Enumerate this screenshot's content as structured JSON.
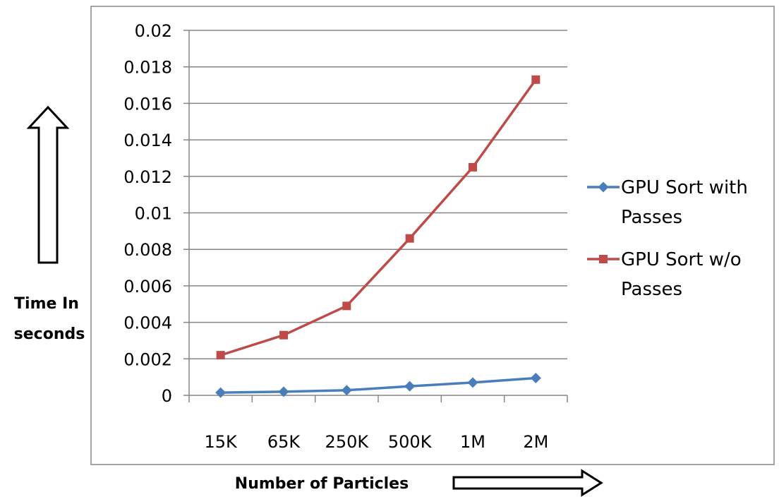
{
  "chart_data": {
    "type": "line",
    "categories": [
      "15K",
      "65K",
      "250K",
      "500K",
      "1M",
      "2M"
    ],
    "series": [
      {
        "name": "GPU Sort with Passes",
        "values": [
          0.00015,
          0.0002,
          0.00028,
          0.0005,
          0.0007,
          0.00095
        ],
        "color": "#4a7ebb",
        "marker": "diamond"
      },
      {
        "name": "GPU Sort w/o Passes",
        "values": [
          0.0022,
          0.0033,
          0.0049,
          0.0086,
          0.0125,
          0.0173
        ],
        "color": "#be4b48",
        "marker": "square"
      }
    ],
    "y_ticks": [
      "0",
      "0.002",
      "0.004",
      "0.006",
      "0.008",
      "0.01",
      "0.012",
      "0.014",
      "0.016",
      "0.018",
      "0.02"
    ],
    "ylim": [
      0,
      0.02
    ],
    "grid": true,
    "legend_position": "right",
    "xlabel": "Number of Particles",
    "ylabel": "Time In seconds",
    "ylabel_lines": [
      "Time In",
      "seconds"
    ]
  }
}
